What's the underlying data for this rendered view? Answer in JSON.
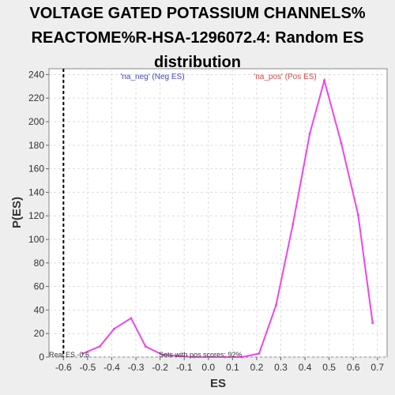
{
  "chart_data": {
    "type": "line",
    "title_lines": [
      "VOLTAGE GATED POTASSIUM CHANNELS%",
      "REACTOME%R-HSA-1296072.4: Random ES",
      "distribution"
    ],
    "xlabel": "ES",
    "ylabel": "P(ES)",
    "xlim": [
      -0.66,
      0.74
    ],
    "ylim": [
      0,
      245
    ],
    "xticks": [
      -0.6,
      -0.5,
      -0.4,
      -0.3,
      -0.2,
      -0.1,
      0.0,
      0.1,
      0.2,
      0.3,
      0.4,
      0.5,
      0.6,
      0.7
    ],
    "xtick_labels": [
      "-0.6",
      "-0.5",
      "-0.4",
      "-0.3",
      "-0.2",
      "-0.1",
      "0.0",
      "0.1",
      "0.2",
      "0.3",
      "0.4",
      "0.5",
      "0.6",
      "0.7"
    ],
    "yticks": [
      0,
      20,
      40,
      60,
      80,
      100,
      120,
      140,
      160,
      180,
      200,
      220,
      240
    ],
    "ytick_labels": [
      "0",
      "20",
      "40",
      "60",
      "80",
      "100",
      "120",
      "140",
      "160",
      "180",
      "200",
      "220",
      "240"
    ],
    "grid": true,
    "series": [
      {
        "color": "#ee44ee",
        "x": [
          -0.52,
          -0.45,
          -0.39,
          -0.32,
          -0.26,
          -0.19,
          -0.13,
          -0.06,
          0.0,
          0.07,
          0.14,
          0.21,
          0.28,
          0.35,
          0.42,
          0.48,
          0.55,
          0.62,
          0.68
        ],
        "y": [
          3,
          9,
          24,
          33,
          9,
          2,
          1,
          0,
          0,
          0,
          0,
          3,
          44,
          113,
          190,
          235,
          182,
          121,
          29
        ]
      }
    ],
    "real_es": -0.6,
    "legend": {
      "neg": "'na_neg' (Neg ES)",
      "pos": "'na_pos' (Pos ES)",
      "neg_color": "#4444dd",
      "pos_color": "#dd4444"
    },
    "annotations": {
      "real_es": "Real ES -0.6",
      "pos_scores": "Sets with pos scores: 92%"
    }
  }
}
